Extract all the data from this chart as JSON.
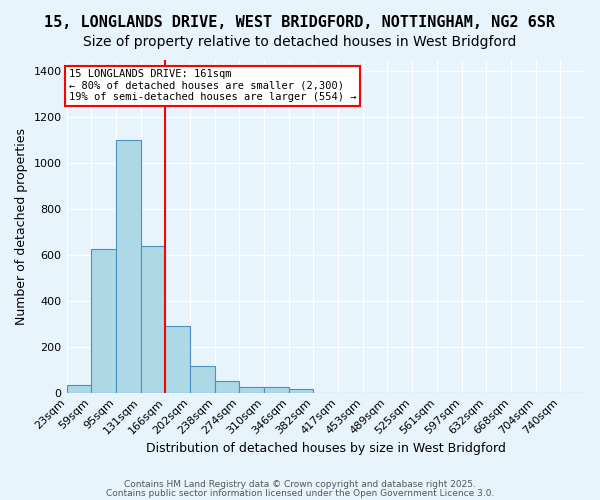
{
  "title_line1": "15, LONGLANDS DRIVE, WEST BRIDGFORD, NOTTINGHAM, NG2 6SR",
  "title_line2": "Size of property relative to detached houses in West Bridgford",
  "xlabel": "Distribution of detached houses by size in West Bridgford",
  "ylabel": "Number of detached properties",
  "categories": [
    "23sqm",
    "59sqm",
    "95sqm",
    "131sqm",
    "166sqm",
    "202sqm",
    "238sqm",
    "274sqm",
    "310sqm",
    "346sqm",
    "382sqm",
    "417sqm",
    "453sqm",
    "489sqm",
    "525sqm",
    "561sqm",
    "597sqm",
    "632sqm",
    "668sqm",
    "704sqm",
    "740sqm"
  ],
  "bar_heights": [
    35,
    625,
    1100,
    640,
    290,
    115,
    50,
    25,
    25,
    15,
    0,
    0,
    0,
    0,
    0,
    0,
    0,
    0,
    0,
    0,
    0
  ],
  "bar_color": "#add8e6",
  "bar_edge_color": "#4a90c4",
  "bar_edge_width": 0.8,
  "vline_x": 4,
  "vline_color": "red",
  "vline_linewidth": 1.5,
  "ylim": [
    0,
    1450
  ],
  "yticks": [
    0,
    200,
    400,
    600,
    800,
    1000,
    1200,
    1400
  ],
  "annotation_title": "15 LONGLANDS DRIVE: 161sqm",
  "annotation_line2": "← 80% of detached houses are smaller (2,300)",
  "annotation_line3": "19% of semi-detached houses are larger (554) →",
  "background_color": "#e8f4fc",
  "grid_color": "#ffffff",
  "title_fontsize": 11,
  "subtitle_fontsize": 10,
  "axis_label_fontsize": 9,
  "tick_fontsize": 8,
  "footer_line1": "Contains HM Land Registry data © Crown copyright and database right 2025.",
  "footer_line2": "Contains public sector information licensed under the Open Government Licence 3.0."
}
